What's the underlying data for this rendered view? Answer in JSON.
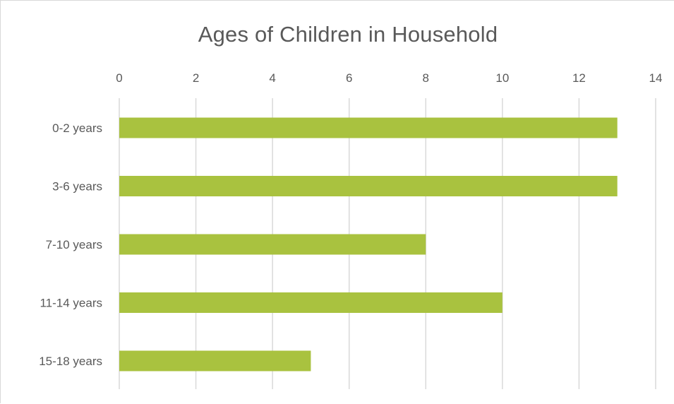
{
  "chart_data": {
    "type": "bar",
    "orientation": "horizontal",
    "title": "Ages of Children in Household",
    "categories": [
      "0-2 years",
      "3-6 years",
      "7-10 years",
      "11-14 years",
      "15-18 years"
    ],
    "values": [
      13,
      13,
      8,
      10,
      5
    ],
    "xlabel": "",
    "ylabel": "",
    "xlim": [
      0,
      14
    ],
    "x_ticks": [
      0,
      2,
      4,
      6,
      8,
      10,
      12,
      14
    ],
    "x_axis_position": "top",
    "grid": true,
    "legend": "none",
    "bar_color": "#a9c23f",
    "grid_color": "#d9d9d9",
    "text_color": "#595959"
  }
}
